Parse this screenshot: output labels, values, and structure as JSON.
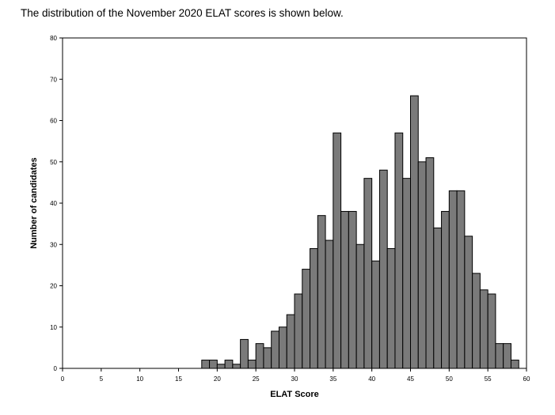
{
  "intro_text": "The distribution of the November 2020 ELAT scores is shown below.",
  "chart_data": {
    "type": "bar",
    "title": "",
    "xlabel": "ELAT Score",
    "ylabel": "Number of candidates",
    "xlim": [
      0,
      60
    ],
    "ylim": [
      0,
      80
    ],
    "xticks": [
      0,
      5,
      10,
      15,
      20,
      25,
      30,
      35,
      40,
      45,
      50,
      55,
      60
    ],
    "yticks": [
      0,
      10,
      20,
      30,
      40,
      50,
      60,
      70,
      80
    ],
    "grid": false,
    "bar_color": "#7a7a7a",
    "bars": [
      {
        "x": 19,
        "value": 2
      },
      {
        "x": 20,
        "value": 2
      },
      {
        "x": 21,
        "value": 1
      },
      {
        "x": 22,
        "value": 2
      },
      {
        "x": 23,
        "value": 1
      },
      {
        "x": 24,
        "value": 7
      },
      {
        "x": 25,
        "value": 2
      },
      {
        "x": 26,
        "value": 6
      },
      {
        "x": 27,
        "value": 5
      },
      {
        "x": 28,
        "value": 9
      },
      {
        "x": 29,
        "value": 10
      },
      {
        "x": 30,
        "value": 13
      },
      {
        "x": 31,
        "value": 18
      },
      {
        "x": 32,
        "value": 24
      },
      {
        "x": 33,
        "value": 29
      },
      {
        "x": 34,
        "value": 37
      },
      {
        "x": 35,
        "value": 31
      },
      {
        "x": 36,
        "value": 57
      },
      {
        "x": 37,
        "value": 38
      },
      {
        "x": 38,
        "value": 38
      },
      {
        "x": 39,
        "value": 30
      },
      {
        "x": 40,
        "value": 46
      },
      {
        "x": 41,
        "value": 26
      },
      {
        "x": 42,
        "value": 48
      },
      {
        "x": 43,
        "value": 29
      },
      {
        "x": 44,
        "value": 57
      },
      {
        "x": 45,
        "value": 46
      },
      {
        "x": 46,
        "value": 66
      },
      {
        "x": 47,
        "value": 50
      },
      {
        "x": 48,
        "value": 51
      },
      {
        "x": 49,
        "value": 34
      },
      {
        "x": 50,
        "value": 38
      },
      {
        "x": 51,
        "value": 43
      },
      {
        "x": 52,
        "value": 43
      },
      {
        "x": 53,
        "value": 32
      },
      {
        "x": 54,
        "value": 23
      },
      {
        "x": 55,
        "value": 19
      },
      {
        "x": 56,
        "value": 18
      },
      {
        "x": 57,
        "value": 6
      },
      {
        "x": 58,
        "value": 6
      },
      {
        "x": 59,
        "value": 2
      }
    ]
  }
}
